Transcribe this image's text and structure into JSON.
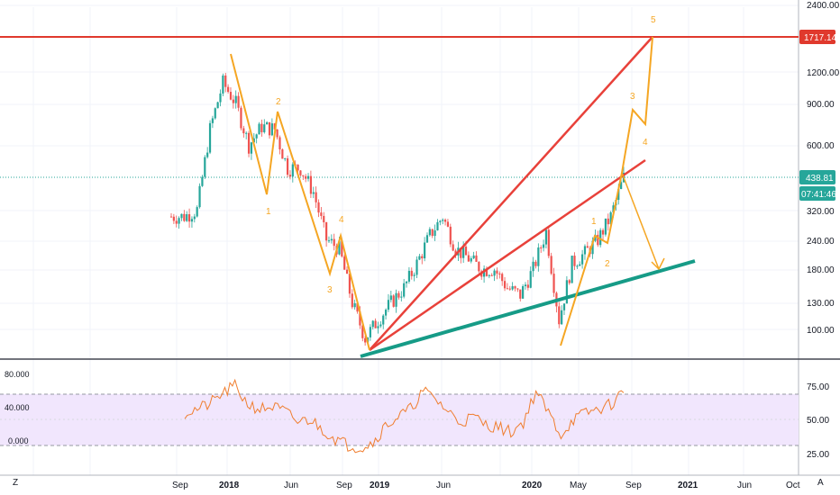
{
  "colors": {
    "candle_up": "#26a69a",
    "candle_down": "#ef5350",
    "resistance": "#e0392d",
    "trend": "#e8413a",
    "support": "#169b87",
    "wave": "#f5a623",
    "rsi_line": "#f07d2e",
    "rsi_band": "#f1e6fd",
    "current_price": "#26a69a"
  },
  "price_axis": {
    "labels": [
      "2400.00",
      "1200.00",
      "900.00",
      "600.00",
      "320.00",
      "240.00",
      "180.00",
      "130.00",
      "100.00"
    ],
    "tags": [
      {
        "text": "1717.14",
        "color": "#e0392d"
      },
      {
        "text": "438.81",
        "color": "#26a69a"
      },
      {
        "text": "07:41:46",
        "color": "#26a69a"
      }
    ]
  },
  "time_axis": {
    "labels": [
      "Sep",
      "2018",
      "Jun",
      "Sep",
      "2019",
      "Jun",
      "2020",
      "May",
      "Sep",
      "2021",
      "Jun",
      "Oct"
    ]
  },
  "rsi_axis": {
    "left_labels": [
      "80.000",
      "40.000",
      "0.000"
    ],
    "right_labels": [
      "75.00",
      "50.00",
      "25.00"
    ]
  },
  "corner_labels": {
    "left": "Z",
    "right": "A"
  },
  "chart_data": {
    "type": "candlestick",
    "scale": "log",
    "x": [
      "2017-09",
      "2017-10",
      "2017-11",
      "2017-12",
      "2018-01",
      "2018-02",
      "2018-03",
      "2018-04",
      "2018-05",
      "2018-06",
      "2018-07",
      "2018-08",
      "2018-09",
      "2018-10",
      "2018-11",
      "2018-12",
      "2019-01",
      "2019-02",
      "2019-03",
      "2019-04",
      "2019-05",
      "2019-06",
      "2019-07",
      "2019-08",
      "2019-09",
      "2019-10",
      "2019-11",
      "2019-12",
      "2020-01",
      "2020-02",
      "2020-03",
      "2020-04",
      "2020-05",
      "2020-06",
      "2020-07",
      "2020-08"
    ],
    "close": [
      300,
      300,
      320,
      700,
      1100,
      900,
      600,
      720,
      700,
      480,
      480,
      380,
      240,
      220,
      130,
      92,
      110,
      130,
      150,
      190,
      250,
      300,
      220,
      200,
      180,
      180,
      150,
      140,
      180,
      260,
      110,
      190,
      210,
      240,
      300,
      439
    ],
    "current_price": 438.81,
    "current_price_label": "438.81",
    "countdown_label": "07:41:46",
    "price_levels": [
      {
        "value": 1717.14,
        "label": "1717.14"
      }
    ],
    "elliott_wave": {
      "labels": [
        "1",
        "2",
        "3",
        "4",
        "1",
        "2",
        "3",
        "4",
        "5"
      ],
      "path": [
        {
          "date": "2018-01",
          "price": 1380
        },
        {
          "date": "2018-03",
          "price": 380
        },
        {
          "date": "2018-05",
          "price": 830
        },
        {
          "date": "2018-09",
          "price": 170
        },
        {
          "date": "2018-10",
          "price": 240
        },
        {
          "date": "2018-12",
          "price": 82
        }
      ],
      "projection": [
        {
          "date": "2020-03",
          "price": 82
        },
        {
          "date": "2020-05",
          "price": 250
        },
        {
          "date": "2020-06",
          "price": 235
        },
        {
          "date": "2020-08",
          "price": 450
        },
        {
          "date": "2020-09",
          "price": 880
        },
        {
          "date": "2020-09-15",
          "price": 730
        },
        {
          "date": "2020-10",
          "price": 1717
        }
      ],
      "alternate": [
        {
          "date": "2020-08",
          "price": 440
        },
        {
          "date": "2020-10",
          "price": 175
        }
      ]
    },
    "trendlines": [
      {
        "from": {
          "date": "2018-12",
          "price": 82
        },
        "to": {
          "date": "2020-10",
          "price": 1717
        },
        "role": "fan-upper"
      },
      {
        "from": {
          "date": "2018-12",
          "price": 82
        },
        "to": {
          "date": "2020-10",
          "price": 500
        },
        "role": "fan-lower"
      },
      {
        "from": {
          "date": "2018-12",
          "price": 77
        },
        "to": {
          "date": "2020-12",
          "price": 197
        },
        "role": "support"
      }
    ],
    "rsi": {
      "overbought": 70,
      "oversold": 30,
      "values": [
        55,
        58,
        62,
        70,
        76,
        62,
        58,
        60,
        56,
        48,
        50,
        42,
        35,
        30,
        28,
        32,
        45,
        52,
        58,
        72,
        66,
        56,
        48,
        52,
        46,
        44,
        40,
        48,
        72,
        55,
        38,
        50,
        55,
        58,
        62,
        72
      ]
    }
  }
}
